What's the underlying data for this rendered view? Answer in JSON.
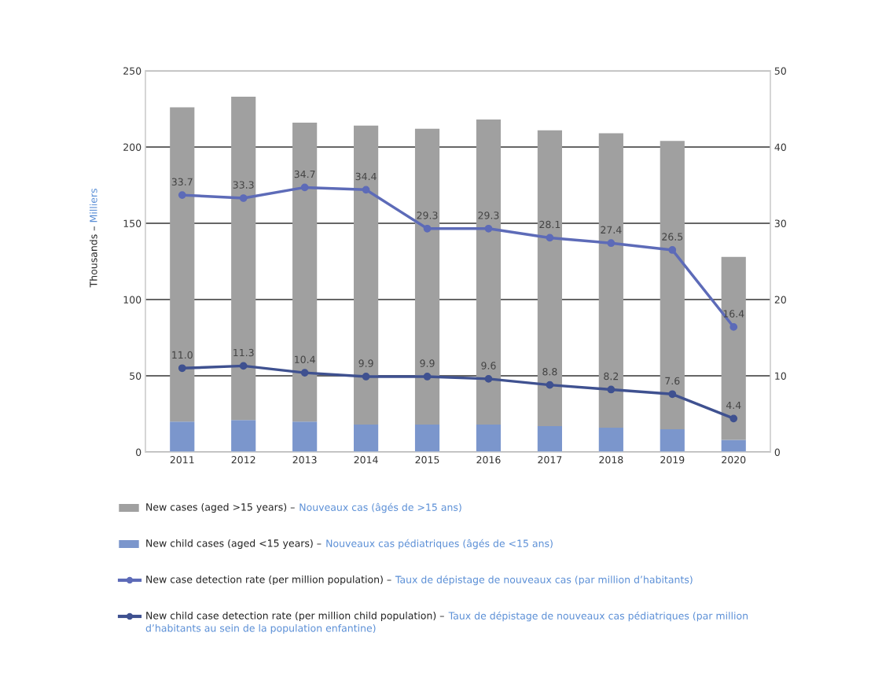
{
  "chart_data": {
    "type": "bar",
    "stacked": true,
    "ylabel": "Thousands – Milliers",
    "categories": [
      "2011",
      "2012",
      "2013",
      "2014",
      "2015",
      "2016",
      "2017",
      "2018",
      "2019",
      "2020"
    ],
    "series": [
      {
        "name": "New child cases (aged <15 years) – Nouveaux cas pédiatriques (âgés de <15 ans)",
        "color": "#7b96cc",
        "values": [
          20,
          21,
          20,
          18,
          18,
          18,
          17,
          16,
          15,
          8
        ]
      },
      {
        "name": "New cases (aged >15 years) – Nouveaux cas (âgés de >15 ans)",
        "color": "#a0a0a0",
        "values": [
          206,
          212,
          196,
          196,
          194,
          200,
          194,
          193,
          189,
          120
        ]
      },
      {
        "name": "New case detection rate (per million population) – Taux de dépistage de nouveaux cas (par million d’habitants)",
        "type": "line",
        "axis": "y2",
        "color": "#5d6bb8",
        "values": [
          33.7,
          33.3,
          34.7,
          34.4,
          29.3,
          29.3,
          28.1,
          27.4,
          26.5,
          16.4
        ],
        "value_labels": [
          "33.7",
          "33.3",
          "34.7",
          "34.4",
          "29.3",
          "29.3",
          "28.1",
          "27.4",
          "26.5",
          "16.4"
        ]
      },
      {
        "name": "New child case detection rate (per million child population) – Taux de dépistage de nouveaux cas pédiatriques (par million d’habitants au sein de la population enfantine)",
        "type": "line",
        "axis": "y2",
        "color": "#3f5190",
        "values": [
          11.0,
          11.3,
          10.4,
          9.9,
          9.9,
          9.6,
          8.8,
          8.2,
          7.6,
          4.4
        ],
        "value_labels": [
          "11.0",
          "11.3",
          "10.4",
          "9.9",
          "9.9",
          "9.6",
          "8.8",
          "8.2",
          "7.6",
          "4.4"
        ]
      }
    ],
    "ylim": [
      0,
      250
    ],
    "yticks": [
      0,
      50,
      100,
      150,
      200,
      250
    ],
    "y2lim": [
      0,
      50
    ],
    "y2ticks": [
      0,
      10,
      20,
      30,
      40,
      50
    ],
    "grid": "y",
    "legend": "bottom",
    "marker": "circle",
    "line_style": "solid"
  }
}
